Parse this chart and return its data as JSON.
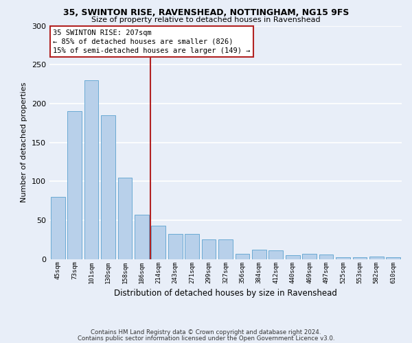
{
  "title_line1": "35, SWINTON RISE, RAVENSHEAD, NOTTINGHAM, NG15 9FS",
  "title_line2": "Size of property relative to detached houses in Ravenshead",
  "xlabel": "Distribution of detached houses by size in Ravenshead",
  "ylabel": "Number of detached properties",
  "categories": [
    "45sqm",
    "73sqm",
    "101sqm",
    "130sqm",
    "158sqm",
    "186sqm",
    "214sqm",
    "243sqm",
    "271sqm",
    "299sqm",
    "327sqm",
    "356sqm",
    "384sqm",
    "412sqm",
    "440sqm",
    "469sqm",
    "497sqm",
    "525sqm",
    "553sqm",
    "582sqm",
    "610sqm"
  ],
  "values": [
    80,
    190,
    230,
    185,
    105,
    57,
    43,
    32,
    32,
    25,
    25,
    7,
    12,
    11,
    5,
    7,
    6,
    2,
    2,
    3,
    2
  ],
  "bar_color": "#b8d0ea",
  "bar_edge_color": "#6aaad4",
  "vline_x_index": 5.5,
  "vline_color": "#b22222",
  "annotation_line1": "35 SWINTON RISE: 207sqm",
  "annotation_line2": "← 85% of detached houses are smaller (826)",
  "annotation_line3": "15% of semi-detached houses are larger (149) →",
  "annotation_box_color": "#ffffff",
  "annotation_box_edge": "#b22222",
  "background_color": "#e8eef8",
  "grid_color": "#ffffff",
  "ylim": [
    0,
    300
  ],
  "yticks": [
    0,
    50,
    100,
    150,
    200,
    250,
    300
  ],
  "footer_line1": "Contains HM Land Registry data © Crown copyright and database right 2024.",
  "footer_line2": "Contains public sector information licensed under the Open Government Licence v3.0."
}
